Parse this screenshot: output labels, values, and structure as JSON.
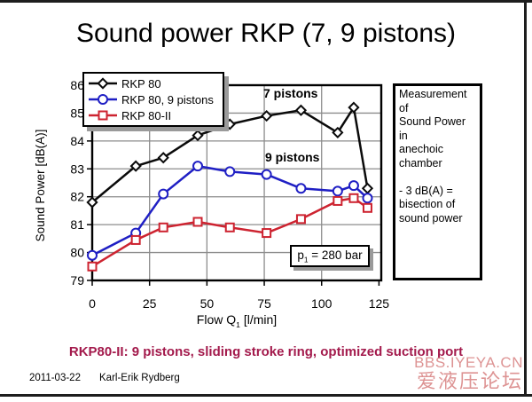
{
  "slide": {
    "title": "Sound power RKP (7, 9 pistons)"
  },
  "chart_data": {
    "type": "line",
    "title": "Sound power RKP (7, 9 pistons)",
    "xlabel": {
      "pre": "Flow Q",
      "sub": "1",
      "post": " [l/min]"
    },
    "ylabel": "Sound Power [dB(A)]",
    "xlim": [
      0,
      126
    ],
    "ylim": [
      79,
      86
    ],
    "xticks": [
      0,
      25,
      50,
      75,
      100,
      125
    ],
    "yticks": [
      79,
      80,
      81,
      82,
      83,
      84,
      85,
      86
    ],
    "grid": true,
    "legend_position": "top-left",
    "x": [
      0,
      19,
      31,
      46,
      60,
      76,
      91,
      107,
      114,
      120
    ],
    "series": [
      {
        "name": "RKP 80",
        "color": "#0a0a0a",
        "marker": "diamond",
        "values": [
          81.8,
          83.1,
          83.4,
          84.2,
          84.6,
          84.9,
          85.1,
          84.3,
          85.2,
          82.3
        ]
      },
      {
        "name": "RKP 80, 9 pistons",
        "color": "#1f1fc4",
        "marker": "circle",
        "values": [
          79.9,
          80.7,
          82.1,
          83.1,
          82.9,
          82.8,
          82.3,
          82.2,
          82.4,
          81.95
        ]
      },
      {
        "name": "RKP 80-II",
        "color": "#cd2330",
        "marker": "square",
        "values": [
          79.5,
          80.45,
          80.9,
          81.1,
          80.9,
          80.7,
          81.2,
          81.85,
          81.95,
          81.6
        ]
      }
    ],
    "annotations": [
      {
        "text": "7 pistons"
      },
      {
        "text": "9 pistons"
      }
    ],
    "pressure_annotation": {
      "pre": "p",
      "sub": "1",
      "post": " = 280 bar"
    }
  },
  "note": {
    "lines": [
      "Measurement of",
      "Sound Power in",
      "anechoic",
      "chamber",
      "",
      "- 3 dB(A) =",
      "bisection of",
      "sound power"
    ]
  },
  "subtitle": {
    "text": "RKP80-II: 9 pistons, sliding stroke ring, optimized suction port"
  },
  "footer": {
    "date": "2011-03-22",
    "author": "Karl-Erik Rydberg"
  },
  "watermark": {
    "line1": "BBS.IYEYA.CN",
    "line2": "爱液压论坛"
  },
  "colors": {
    "subtitle": "#a31a4c",
    "watermark": "#d98585",
    "grid": "#8c8c8c",
    "frame": "#000000",
    "shadow": "#9a9a9a"
  }
}
